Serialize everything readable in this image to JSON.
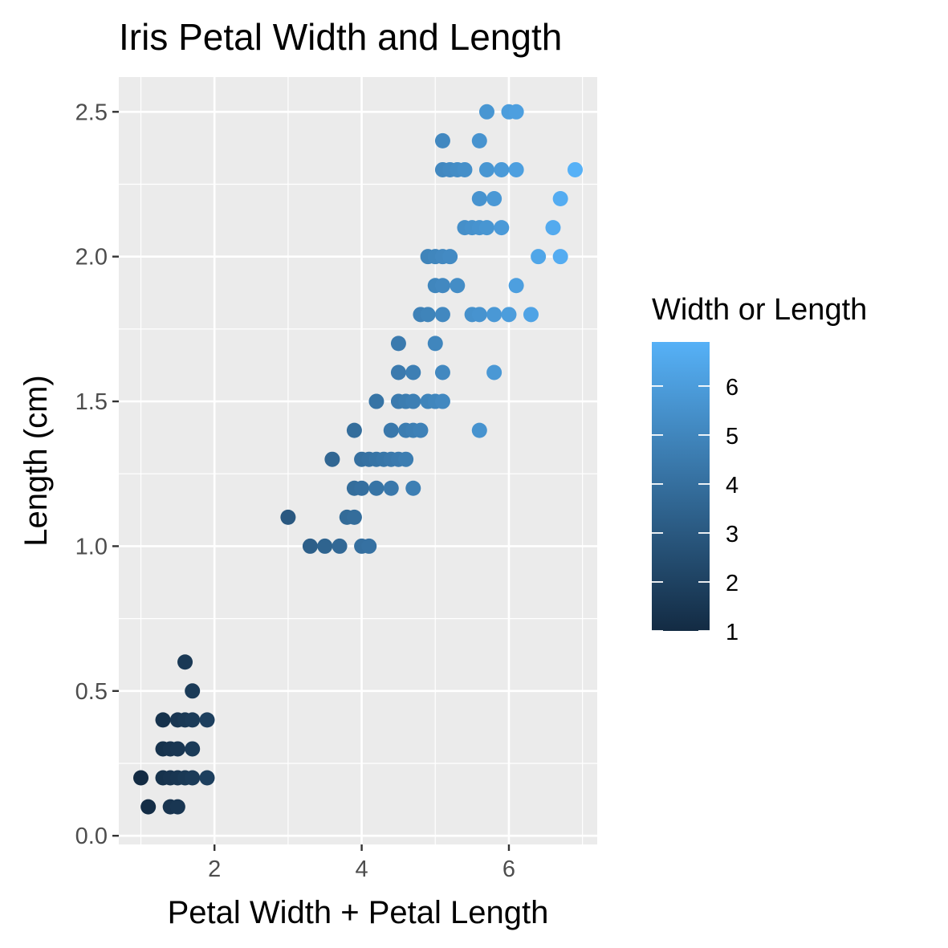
{
  "chart_data": {
    "type": "scatter",
    "title": "Iris Petal Width and Length",
    "xlabel": "Petal Width + Petal Length",
    "ylabel": "Length (cm)",
    "xlim": [
      0.7,
      7.2
    ],
    "ylim": [
      -0.03,
      2.62
    ],
    "x_ticks": [
      2,
      4,
      6
    ],
    "y_ticks": [
      0.0,
      0.5,
      1.0,
      1.5,
      2.0,
      2.5
    ],
    "x_tick_labels": [
      "2",
      "4",
      "6"
    ],
    "y_tick_labels": [
      "0.0",
      "0.5",
      "1.0",
      "1.5",
      "2.0",
      "2.5"
    ],
    "grid": true,
    "legend": {
      "title": "Width or Length",
      "position": "right",
      "type": "colorbar",
      "range": [
        1,
        6.9
      ],
      "ticks": [
        1,
        2,
        3,
        4,
        5,
        6
      ],
      "tick_labels": [
        "1",
        "2",
        "3",
        "4",
        "5",
        "6"
      ],
      "color_low": "#132B43",
      "color_high": "#56B1F7"
    },
    "points": [
      [
        1.0,
        0.2
      ],
      [
        1.3,
        0.2
      ],
      [
        1.4,
        0.2
      ],
      [
        1.5,
        0.2
      ],
      [
        1.6,
        0.2
      ],
      [
        1.7,
        0.2
      ],
      [
        1.9,
        0.2
      ],
      [
        1.1,
        0.1
      ],
      [
        1.4,
        0.1
      ],
      [
        1.5,
        0.1
      ],
      [
        1.3,
        0.3
      ],
      [
        1.4,
        0.3
      ],
      [
        1.5,
        0.3
      ],
      [
        1.7,
        0.3
      ],
      [
        1.3,
        0.4
      ],
      [
        1.5,
        0.4
      ],
      [
        1.6,
        0.4
      ],
      [
        1.7,
        0.4
      ],
      [
        1.9,
        0.4
      ],
      [
        1.7,
        0.5
      ],
      [
        1.6,
        0.6
      ],
      [
        3.3,
        1.0
      ],
      [
        3.5,
        1.0
      ],
      [
        3.7,
        1.0
      ],
      [
        4.0,
        1.0
      ],
      [
        4.1,
        1.0
      ],
      [
        3.0,
        1.1
      ],
      [
        3.8,
        1.1
      ],
      [
        3.9,
        1.1
      ],
      [
        3.9,
        1.2
      ],
      [
        4.0,
        1.2
      ],
      [
        4.2,
        1.2
      ],
      [
        4.4,
        1.2
      ],
      [
        4.7,
        1.2
      ],
      [
        3.6,
        1.3
      ],
      [
        4.0,
        1.3
      ],
      [
        4.1,
        1.3
      ],
      [
        4.2,
        1.3
      ],
      [
        4.3,
        1.3
      ],
      [
        4.4,
        1.3
      ],
      [
        4.5,
        1.3
      ],
      [
        4.6,
        1.3
      ],
      [
        3.9,
        1.4
      ],
      [
        4.4,
        1.4
      ],
      [
        4.6,
        1.4
      ],
      [
        4.7,
        1.4
      ],
      [
        4.8,
        1.4
      ],
      [
        5.6,
        1.4
      ],
      [
        4.2,
        1.5
      ],
      [
        4.5,
        1.5
      ],
      [
        4.6,
        1.5
      ],
      [
        4.7,
        1.5
      ],
      [
        4.9,
        1.5
      ],
      [
        5.0,
        1.5
      ],
      [
        5.1,
        1.5
      ],
      [
        4.5,
        1.6
      ],
      [
        4.7,
        1.6
      ],
      [
        5.1,
        1.6
      ],
      [
        5.8,
        1.6
      ],
      [
        4.5,
        1.7
      ],
      [
        5.0,
        1.7
      ],
      [
        4.8,
        1.8
      ],
      [
        4.9,
        1.8
      ],
      [
        5.1,
        1.8
      ],
      [
        5.5,
        1.8
      ],
      [
        5.6,
        1.8
      ],
      [
        5.8,
        1.8
      ],
      [
        6.0,
        1.8
      ],
      [
        6.3,
        1.8
      ],
      [
        5.0,
        1.9
      ],
      [
        5.1,
        1.9
      ],
      [
        5.3,
        1.9
      ],
      [
        6.1,
        1.9
      ],
      [
        4.9,
        2.0
      ],
      [
        5.0,
        2.0
      ],
      [
        5.1,
        2.0
      ],
      [
        5.2,
        2.0
      ],
      [
        6.4,
        2.0
      ],
      [
        6.7,
        2.0
      ],
      [
        5.4,
        2.1
      ],
      [
        5.5,
        2.1
      ],
      [
        5.6,
        2.1
      ],
      [
        5.7,
        2.1
      ],
      [
        5.9,
        2.1
      ],
      [
        6.6,
        2.1
      ],
      [
        5.6,
        2.2
      ],
      [
        5.8,
        2.2
      ],
      [
        6.7,
        2.2
      ],
      [
        5.1,
        2.3
      ],
      [
        5.2,
        2.3
      ],
      [
        5.3,
        2.3
      ],
      [
        5.4,
        2.3
      ],
      [
        5.7,
        2.3
      ],
      [
        5.9,
        2.3
      ],
      [
        6.1,
        2.3
      ],
      [
        6.9,
        2.3
      ],
      [
        5.1,
        2.4
      ],
      [
        5.6,
        2.4
      ],
      [
        5.7,
        2.5
      ],
      [
        6.0,
        2.5
      ],
      [
        6.1,
        2.5
      ]
    ]
  }
}
